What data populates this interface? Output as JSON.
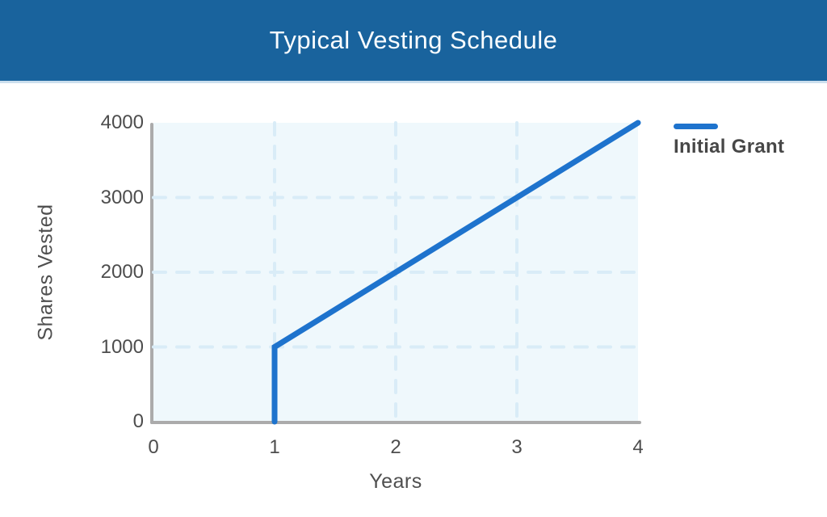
{
  "header": {
    "title": "Typical Vesting Schedule",
    "background": "#19639d",
    "title_color": "#fafdff"
  },
  "chart_data": {
    "type": "line",
    "title": "Typical Vesting Schedule",
    "xlabel": "Years",
    "ylabel": "Shares Vested",
    "xlim": [
      0,
      4
    ],
    "ylim": [
      0,
      4000
    ],
    "xticks": [
      0,
      1,
      2,
      3,
      4
    ],
    "yticks": [
      0,
      1000,
      2000,
      3000,
      4000
    ],
    "grid": "dashed gridlines at interior ticks only",
    "legend_position": "outside top-right",
    "plot_background": "#eff8fc",
    "gridline_color": "#d9ecf7",
    "axis_color": "#ababab",
    "tick_label_color": "#4d4d4d",
    "series": [
      {
        "name": "Initial Grant",
        "color": "#1e73cd",
        "points": [
          [
            1,
            0
          ],
          [
            1,
            1000
          ],
          [
            4,
            4000
          ]
        ],
        "description": "One-year cliff at 1000 shares, then linear vesting to 4000 shares at year 4"
      }
    ]
  },
  "legend": {
    "items": [
      {
        "label": "Initial Grant",
        "color": "#1e73cd"
      }
    ]
  }
}
